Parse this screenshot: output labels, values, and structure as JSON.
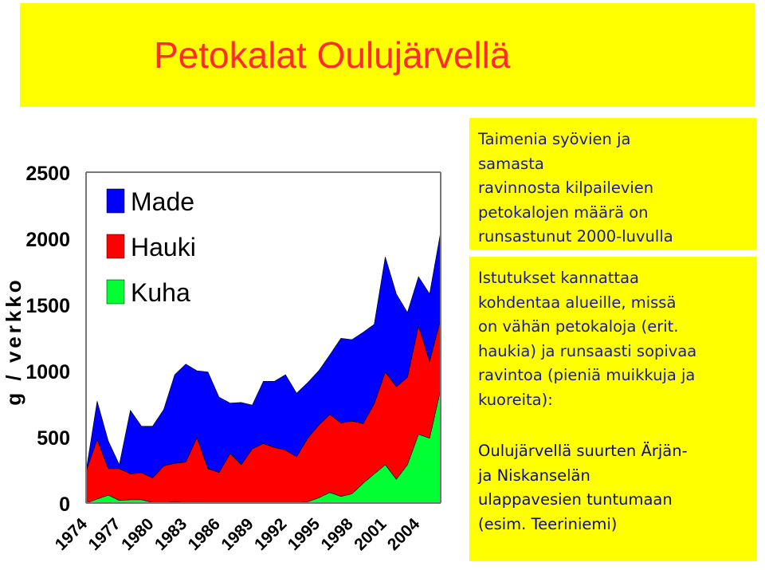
{
  "title": "Petokalat Oulujärvellä",
  "text_boxes": [
    "Taimenia syövien ja samasta ravinnosta kilpailevien petokalojen määrä on runsastunut 2000-luvulla",
    "Istutukset kannattaa kohdentaa alueille, missä on vähän petokaloja (erit. haukia) ja runsaasti sopivaa ravintoa (pieniä muikkuja ja kuoreita):",
    "Oulujärvellä suurten Ärjän- ja Niskanselän ulappavesien tuntumaan (esim. Teeriniemi)"
  ],
  "text_lines": [
    [
      "Taimenia syövien ja",
      "samasta",
      "ravinnosta kilpailevien",
      "petokalojen määrä on",
      "runsastunut 2000-luvulla"
    ],
    [
      "Istutukset kannattaa",
      "kohdentaa alueille, missä",
      "on vähän petokaloja (erit.",
      "haukia) ja runsaasti sopivaa",
      "ravintoa (pieniä muikkuja ja",
      "kuoreita):"
    ],
    [
      "Oulujärvellä suurten Ärjän-",
      "ja Niskanselän",
      "ulappavesien tuntumaan",
      "(esim. Teeriniemi)"
    ]
  ],
  "colors": {
    "banner": "#ffff00",
    "title": "#ff2a2a",
    "text": "#1a1a99",
    "made": "#0000ff",
    "hauki": "#ff0000",
    "kuha": "#00ff33"
  },
  "chart_data": {
    "type": "area",
    "stacked": true,
    "ylabel": "g / verkko",
    "xlabel": "",
    "ylim": [
      0,
      2500
    ],
    "yticks": [
      "0",
      "500",
      "1000",
      "1500",
      "2000",
      "2500"
    ],
    "xticks": [
      "1974",
      "1977",
      "1980",
      "1983",
      "1986",
      "1989",
      "1992",
      "1995",
      "1998",
      "2001",
      "2004"
    ],
    "legend_position": "top-left",
    "grid": false,
    "x": [
      1974,
      1975,
      1976,
      1977,
      1978,
      1979,
      1980,
      1981,
      1982,
      1983,
      1984,
      1985,
      1986,
      1987,
      1988,
      1989,
      1990,
      1991,
      1992,
      1993,
      1994,
      1995,
      1996,
      1997,
      1998,
      1999,
      2000,
      2001,
      2002,
      2003,
      2004,
      2005,
      2006
    ],
    "series": [
      {
        "name": "Kuha",
        "values": [
          0,
          30,
          60,
          20,
          25,
          25,
          5,
          0,
          10,
          0,
          5,
          0,
          0,
          0,
          0,
          0,
          0,
          0,
          0,
          0,
          10,
          40,
          80,
          50,
          70,
          150,
          220,
          290,
          180,
          290,
          520,
          490,
          860
        ]
      },
      {
        "name": "Hauki",
        "values": [
          240,
          450,
          200,
          240,
          195,
          205,
          185,
          280,
          290,
          310,
          490,
          260,
          230,
          375,
          290,
          410,
          450,
          420,
          400,
          350,
          480,
          550,
          590,
          555,
          550,
          450,
          530,
          700,
          700,
          660,
          820,
          580,
          530
        ]
      },
      {
        "name": "Made",
        "values": [
          0,
          290,
          210,
          30,
          480,
          350,
          390,
          425,
          670,
          740,
          505,
          730,
          570,
          380,
          470,
          330,
          470,
          500,
          570,
          480,
          420,
          410,
          450,
          640,
          615,
          690,
          600,
          870,
          700,
          490,
          370,
          510,
          660
        ]
      }
    ]
  }
}
